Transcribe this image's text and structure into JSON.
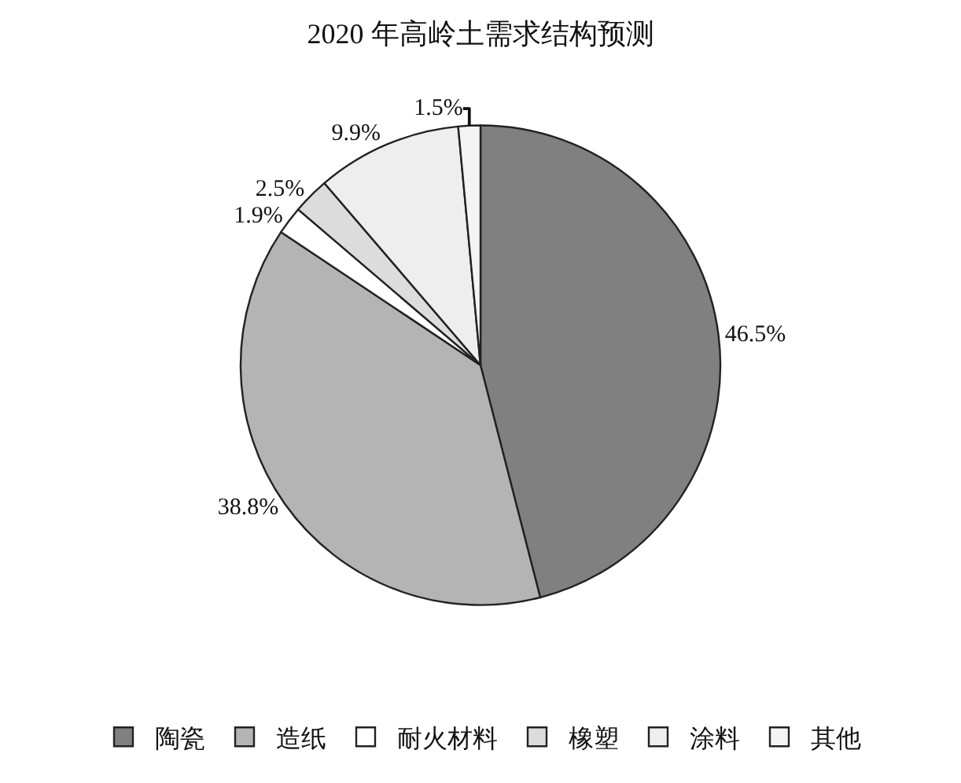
{
  "chart_data": {
    "type": "pie",
    "title": "2020 年高岭土需求结构预测",
    "categories": [
      "陶瓷",
      "造纸",
      "耐火材料",
      "橡塑",
      "涂料",
      "其他"
    ],
    "values": [
      46.5,
      38.8,
      1.9,
      2.5,
      9.9,
      1.5
    ],
    "colors": [
      "#808080",
      "#b4b4b4",
      "#ffffff",
      "#dcdcdc",
      "#eeeeee",
      "#f4f4f4"
    ],
    "value_labels": [
      "46.5%",
      "38.8%",
      "1.9%",
      "2.5%",
      "9.9%",
      "1.5%"
    ],
    "legend": "bottom"
  }
}
